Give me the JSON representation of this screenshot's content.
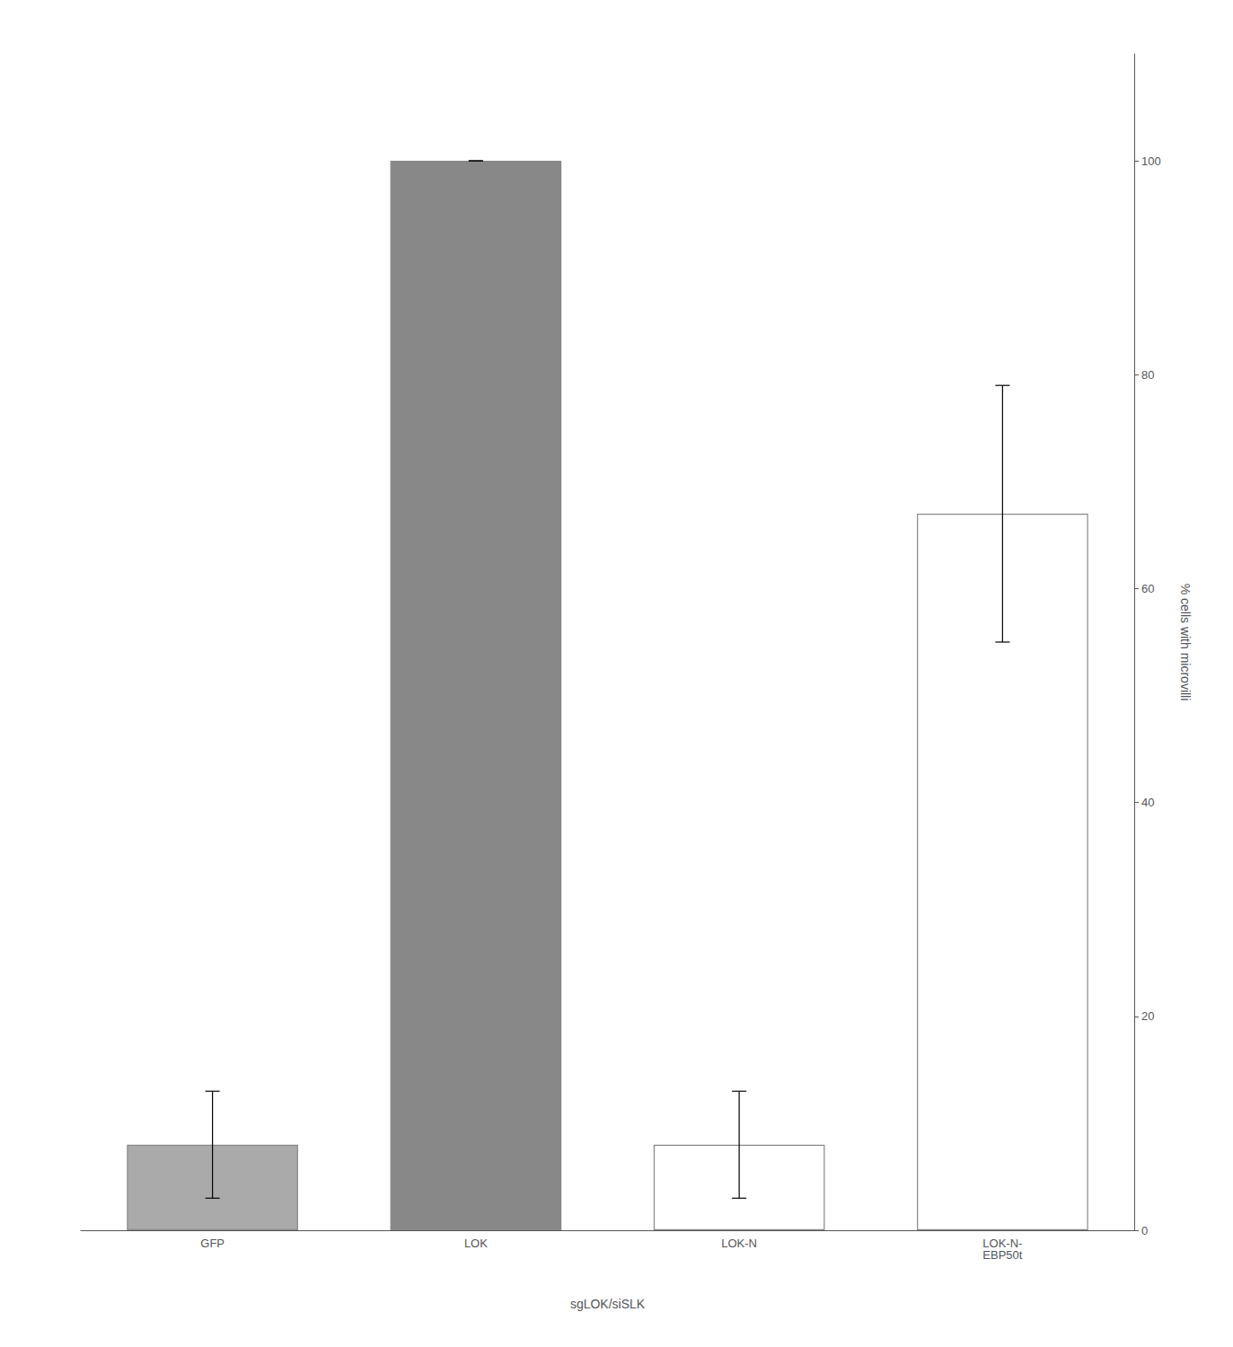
{
  "chart_data": {
    "type": "bar",
    "categories": [
      "GFP",
      "LOK",
      "LOK-N",
      "LOK-N-\nEBP50t"
    ],
    "values": [
      8,
      100,
      8,
      67
    ],
    "errors": [
      5,
      0,
      5,
      12
    ],
    "colors": [
      "#AAAAAA",
      "#888888",
      "#FFFFFF",
      "#FFFFFF"
    ],
    "xlabel": "sgLOK/siSLK",
    "ylabel": "% cells with microvilli",
    "ylim": [
      0,
      110
    ],
    "yticks": [
      0,
      20,
      40,
      60,
      80,
      100
    ],
    "grid": false
  }
}
